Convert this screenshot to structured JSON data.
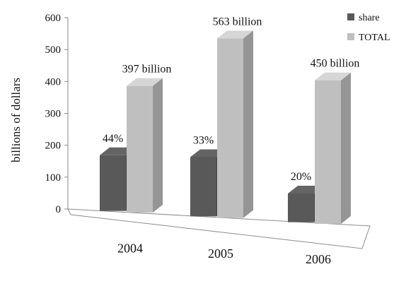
{
  "chart_data": {
    "type": "bar",
    "ylabel": "billions of dollars",
    "xlabel": "",
    "ylim": [
      0,
      600
    ],
    "yticks": [
      0,
      100,
      200,
      300,
      400,
      500,
      600
    ],
    "categories": [
      "2004",
      "2005",
      "2006"
    ],
    "series": [
      {
        "name": "share",
        "values": [
          174.7,
          185.8,
          90.0
        ],
        "labels": [
          "44%",
          "33%",
          "20%"
        ],
        "color": "#595959"
      },
      {
        "name": "TOTAL",
        "values": [
          397,
          563,
          450
        ],
        "labels": [
          "397 billion",
          "563 billion",
          "450 billion"
        ],
        "color": "#bfbfbf"
      }
    ],
    "legend_position": "top-right",
    "style": "3d-bar",
    "grid": false
  }
}
